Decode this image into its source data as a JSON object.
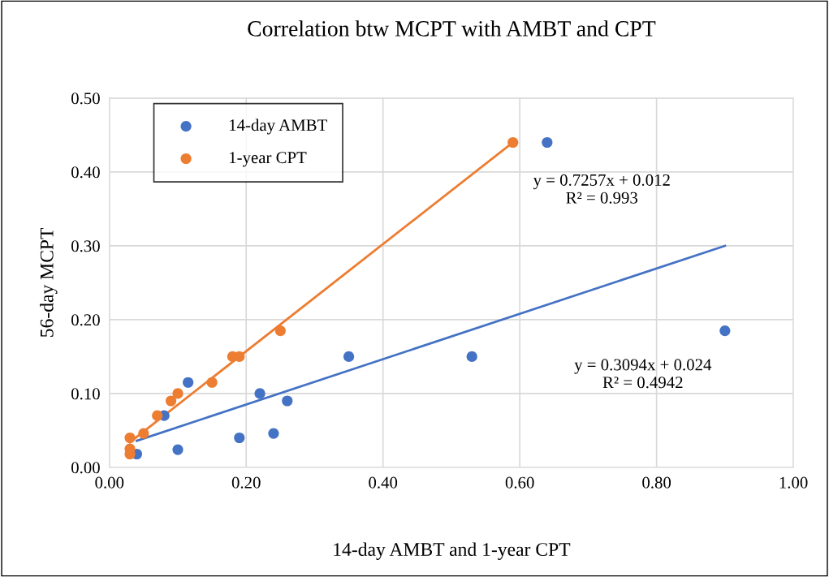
{
  "chart_data": {
    "type": "scatter",
    "title": "Correlation btw MCPT with AMBT and CPT",
    "xlabel": "14-day AMBT and 1-year CPT",
    "ylabel": "56-day MCPT",
    "series": [
      {
        "name": "14-day AMBT",
        "marker": "circle",
        "color": "#4472c4",
        "x": [
          0.04,
          0.1,
          0.08,
          0.115,
          0.19,
          0.22,
          0.24,
          0.26,
          0.35,
          0.53,
          0.64,
          0.9
        ],
        "values": [
          0.018,
          0.024,
          0.07,
          0.115,
          0.04,
          0.1,
          0.046,
          0.09,
          0.15,
          0.15,
          0.44,
          0.185
        ]
      },
      {
        "name": "1-year CPT",
        "marker": "circle",
        "color": "#ed7d31",
        "x": [
          0.03,
          0.03,
          0.03,
          0.05,
          0.07,
          0.09,
          0.1,
          0.15,
          0.18,
          0.19,
          0.25,
          0.59
        ],
        "values": [
          0.04,
          0.025,
          0.018,
          0.046,
          0.07,
          0.09,
          0.1,
          0.115,
          0.15,
          0.15,
          0.185,
          0.44
        ]
      },
      {
        "type": "line",
        "marker": "none",
        "color": "#ed7d31",
        "x": [
          0.03,
          0.59
        ],
        "values": [
          0.034,
          0.44
        ]
      },
      {
        "type": "line",
        "marker": "none",
        "color": "#4472c4",
        "x": [
          0.04,
          0.9
        ],
        "values": [
          0.036,
          0.3
        ]
      }
    ],
    "annotations": [
      "y = 0.7257x + 0.012\nR² = 0.993",
      "y = 0.3094x + 0.024\nR² = 0.4942"
    ],
    "xlim": [
      0,
      1
    ],
    "ylim": [
      0,
      0.5
    ],
    "xticks": [
      {
        "value": 0,
        "label": "0.00"
      },
      {
        "value": 0.2,
        "label": "0.20"
      },
      {
        "value": 0.4,
        "label": "0.40"
      },
      {
        "value": 0.6,
        "label": "0.60"
      },
      {
        "value": 0.8,
        "label": "0.80"
      },
      {
        "value": 1,
        "label": "1.00"
      }
    ],
    "yticks": [
      {
        "value": 0,
        "label": "0.00"
      },
      {
        "value": 0.1,
        "label": "0.10"
      },
      {
        "value": 0.2,
        "label": "0.20"
      },
      {
        "value": 0.3,
        "label": "0.30"
      },
      {
        "value": 0.4,
        "label": "0.40"
      },
      {
        "value": 0.5,
        "label": "0.50"
      }
    ],
    "grid": true,
    "legend": "top left",
    "line_style": "solid"
  }
}
